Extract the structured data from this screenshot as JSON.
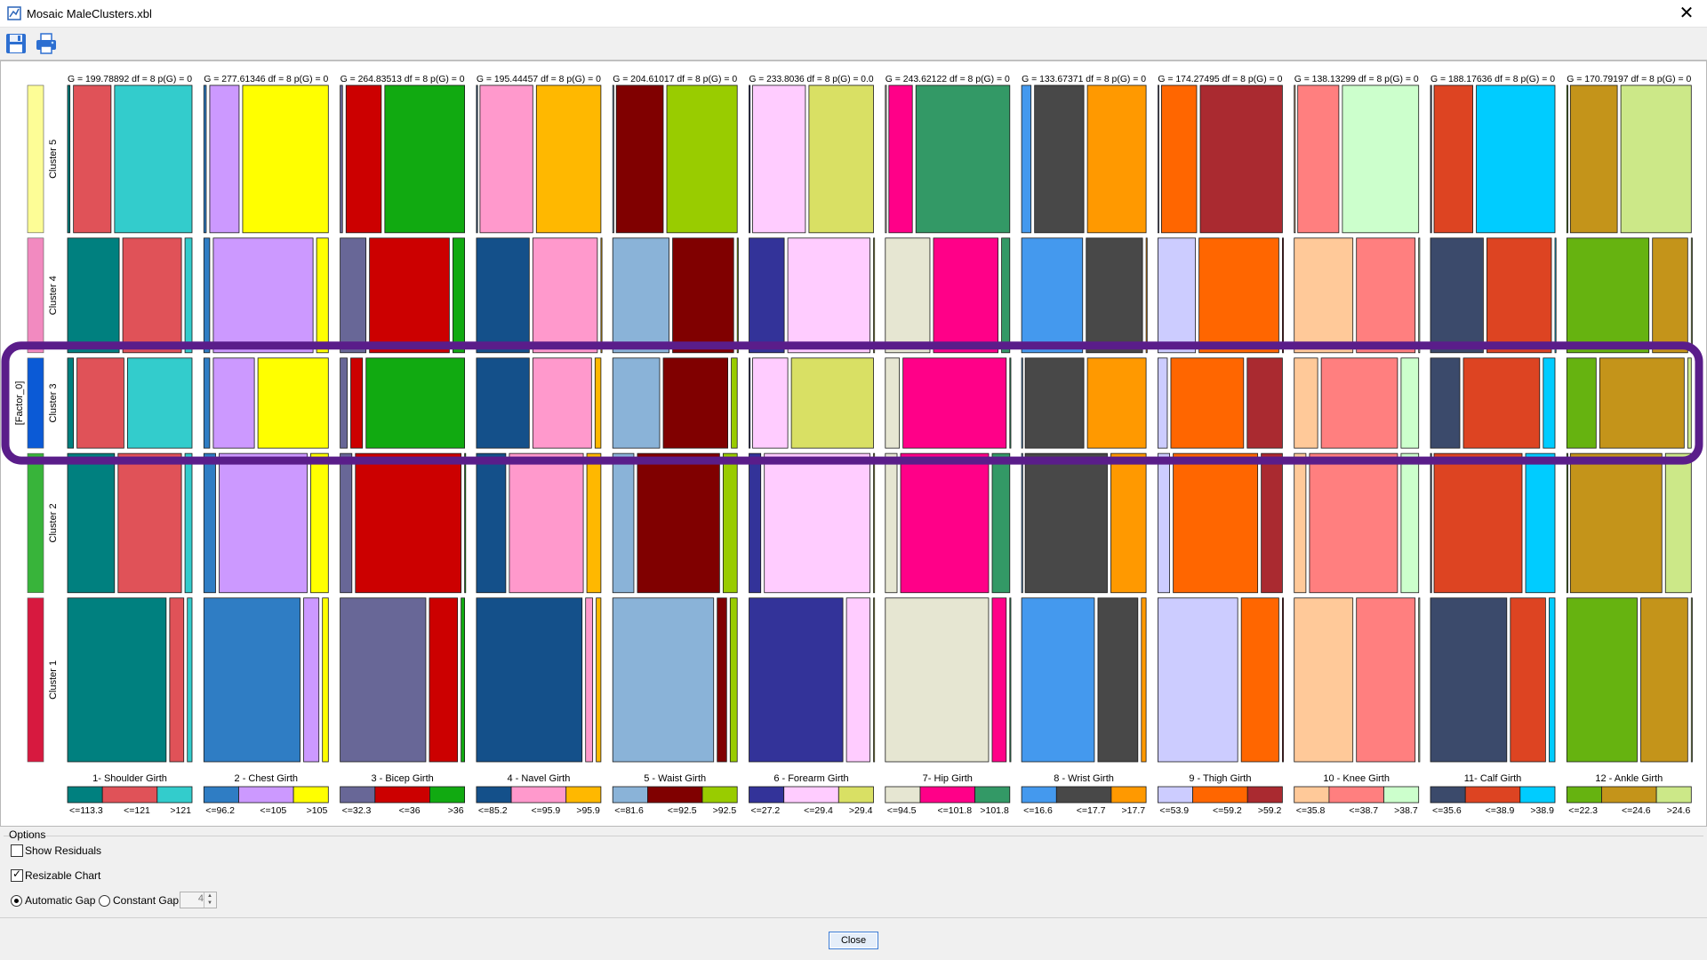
{
  "window": {
    "title": "Mosaic MaleClusters.xbl",
    "close_glyph": "✕"
  },
  "toolbar": {
    "items": [
      {
        "icon": "save-icon"
      },
      {
        "icon": "print-icon"
      }
    ]
  },
  "chart_data": {
    "type": "mosaic",
    "y_axis_label": "[Factor_0]",
    "clusters": [
      "Cluster 5",
      "Cluster 4",
      "Cluster 3",
      "Cluster 2",
      "Cluster 1"
    ],
    "cluster_colors": [
      "#fdfd96",
      "#f28ac0",
      "#0b5ad6",
      "#38b43a",
      "#d7193f"
    ],
    "cluster_fractions": [
      0.18,
      0.14,
      0.11,
      0.17,
      0.2
    ],
    "highlighted_cluster": "Cluster 3",
    "highlight_color": "#5a1d8a",
    "variables": [
      {
        "name": "1- Shoulder Girth",
        "stat": "G = 199.78892 df = 8 p(G) = 0",
        "categories": [
          "<=113.3",
          "<=121",
          ">121"
        ],
        "colors": [
          "#00807f",
          "#e05258",
          "#33cccc"
        ],
        "proportions": [
          [
            0.02,
            0.32,
            0.66
          ],
          [
            0.44,
            0.5,
            0.06
          ],
          [
            0.05,
            0.4,
            0.55
          ],
          [
            0.4,
            0.54,
            0.06
          ],
          [
            0.84,
            0.12,
            0.04
          ]
        ]
      },
      {
        "name": "2 - Chest Girth",
        "stat": "G = 277.61346 df = 8 p(G) = 0",
        "categories": [
          "<=96.2",
          "<=105",
          ">105"
        ],
        "colors": [
          "#2f7dc4",
          "#cc99ff",
          "#ffff00"
        ],
        "proportions": [
          [
            0.02,
            0.25,
            0.73
          ],
          [
            0.05,
            0.85,
            0.1
          ],
          [
            0.05,
            0.35,
            0.6
          ],
          [
            0.1,
            0.75,
            0.15
          ],
          [
            0.82,
            0.13,
            0.05
          ]
        ]
      },
      {
        "name": "3 - Bicep Girth",
        "stat": "G = 264.83513 df = 8 p(G) = 0",
        "categories": [
          "<=32.3",
          "<=36",
          ">36"
        ],
        "colors": [
          "#686797",
          "#cc0000",
          "#11aa11"
        ],
        "proportions": [
          [
            0.02,
            0.3,
            0.68
          ],
          [
            0.22,
            0.68,
            0.1
          ],
          [
            0.06,
            0.1,
            0.84
          ],
          [
            0.1,
            0.9,
            0.0
          ],
          [
            0.73,
            0.24,
            0.03
          ]
        ]
      },
      {
        "name": "4 - Navel Girth",
        "stat": "G = 195.44457 df = 8 p(G) = 0",
        "categories": [
          "<=85.2",
          "<=95.9",
          ">95.9"
        ],
        "colors": [
          "#14508a",
          "#ff99cc",
          "#ffb800"
        ],
        "proportions": [
          [
            0.0,
            0.45,
            0.55
          ],
          [
            0.45,
            0.55,
            0.0
          ],
          [
            0.45,
            0.5,
            0.05
          ],
          [
            0.25,
            0.63,
            0.12
          ],
          [
            0.9,
            0.06,
            0.04
          ]
        ]
      },
      {
        "name": "5 - Waist Girth",
        "stat": "G = 204.61017 df = 8 p(G) = 0",
        "categories": [
          "<=81.6",
          "<=92.5",
          ">92.5"
        ],
        "colors": [
          "#8ab3d8",
          "#800000",
          "#99cc00"
        ],
        "proportions": [
          [
            0.0,
            0.4,
            0.6
          ],
          [
            0.48,
            0.52,
            0.0
          ],
          [
            0.4,
            0.55,
            0.05
          ],
          [
            0.18,
            0.7,
            0.12
          ],
          [
            0.86,
            0.08,
            0.06
          ]
        ]
      },
      {
        "name": "6 - Forearm Girth",
        "stat": "G = 233.8036 df = 8 p(G) = 0.0",
        "categories": [
          "<=27.2",
          "<=29.4",
          ">29.4"
        ],
        "colors": [
          "#333399",
          "#ffccff",
          "#d9e064"
        ],
        "proportions": [
          [
            0.0,
            0.45,
            0.55
          ],
          [
            0.3,
            0.7,
            0.0
          ],
          [
            0.0,
            0.3,
            0.7
          ],
          [
            0.1,
            0.9,
            0.0
          ],
          [
            0.8,
            0.2,
            0.0
          ]
        ]
      },
      {
        "name": "7- Hip Girth",
        "stat": "G = 243.62122 df = 8 p(G) = 0",
        "categories": [
          "<=94.5",
          "<=101.8",
          ">101.8"
        ],
        "colors": [
          "#e6e6d2",
          "#ff0088",
          "#339966"
        ],
        "proportions": [
          [
            0.0,
            0.2,
            0.8
          ],
          [
            0.38,
            0.55,
            0.07
          ],
          [
            0.12,
            0.88,
            0.0
          ],
          [
            0.1,
            0.75,
            0.15
          ],
          [
            0.88,
            0.12,
            0.0
          ]
        ]
      },
      {
        "name": "8 - Wrist Girth",
        "stat": "G = 133.67371 df = 8 p(G) = 0",
        "categories": [
          "<=16.6",
          "<=17.7",
          ">17.7"
        ],
        "colors": [
          "#4499ee",
          "#484848",
          "#ff9900"
        ],
        "proportions": [
          [
            0.08,
            0.42,
            0.5
          ],
          [
            0.52,
            0.48,
            0.0
          ],
          [
            0.0,
            0.5,
            0.5
          ],
          [
            0.0,
            0.7,
            0.3
          ],
          [
            0.62,
            0.34,
            0.04
          ]
        ]
      },
      {
        "name": "9 - Thigh Girth",
        "stat": "G = 174.27495 df = 8 p(G) = 0",
        "categories": [
          "<=53.9",
          "<=59.2",
          ">59.2"
        ],
        "colors": [
          "#ccccff",
          "#ff6600",
          "#aa2a30"
        ],
        "proportions": [
          [
            0.0,
            0.3,
            0.7
          ],
          [
            0.32,
            0.68,
            0.0
          ],
          [
            0.08,
            0.62,
            0.3
          ],
          [
            0.1,
            0.72,
            0.18
          ],
          [
            0.68,
            0.32,
            0.0
          ]
        ]
      },
      {
        "name": "10 - Knee Girth",
        "stat": "G = 138.13299 df = 8 p(G) = 0",
        "categories": [
          "<=35.8",
          "<=38.7",
          ">38.7"
        ],
        "colors": [
          "#ffc999",
          "#ff7f7f",
          "#ccffcc"
        ],
        "proportions": [
          [
            0.0,
            0.35,
            0.65
          ],
          [
            0.5,
            0.5,
            0.0
          ],
          [
            0.2,
            0.65,
            0.15
          ],
          [
            0.1,
            0.75,
            0.15
          ],
          [
            0.5,
            0.5,
            0.0
          ]
        ]
      },
      {
        "name": "11- Calf Girth",
        "stat": "G = 188.17636 df = 8 p(G) = 0",
        "categories": [
          "<=35.6",
          "<=38.9",
          ">38.9"
        ],
        "colors": [
          "#3b4a6b",
          "#dd4422",
          "#00ccff"
        ],
        "proportions": [
          [
            0.0,
            0.33,
            0.67
          ],
          [
            0.45,
            0.55,
            0.0
          ],
          [
            0.25,
            0.65,
            0.1
          ],
          [
            0.0,
            0.75,
            0.25
          ],
          [
            0.65,
            0.3,
            0.05
          ]
        ]
      },
      {
        "name": "12 - Ankle Girth",
        "stat": "G = 170.79197 df = 8 p(G) = 0",
        "categories": [
          "<=22.3",
          "<=24.6",
          ">24.6"
        ],
        "colors": [
          "#66b310",
          "#c4941a",
          "#cce888"
        ],
        "proportions": [
          [
            0.0,
            0.4,
            0.6
          ],
          [
            0.7,
            0.3,
            0.0
          ],
          [
            0.25,
            0.72,
            0.03
          ],
          [
            0.0,
            0.78,
            0.22
          ],
          [
            0.6,
            0.4,
            0.0
          ]
        ]
      }
    ]
  },
  "options": {
    "title": "Options",
    "show_residuals": {
      "label": "Show Residuals",
      "checked": false
    },
    "resizable_chart": {
      "label": "Resizable Chart",
      "checked": true
    },
    "automatic_gap": {
      "label": "Automatic Gap",
      "selected": true
    },
    "constant_gap": {
      "label": "Constant Gap",
      "selected": false
    },
    "gap_value": "4"
  },
  "footer": {
    "close_label": "Close"
  }
}
